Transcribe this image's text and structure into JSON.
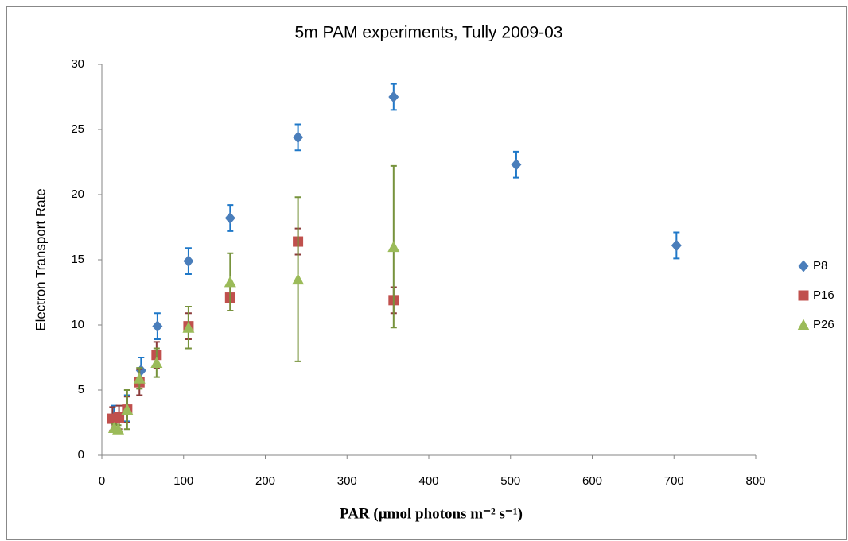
{
  "chart_data": {
    "type": "scatter",
    "title": "5m PAM experiments, Tully 2009-03",
    "x_label": "PAR (µmol photons m⁻² s⁻¹)",
    "y_label": "Electron Transport Rate",
    "xlim": [
      0,
      800
    ],
    "xticks": [
      0,
      100,
      200,
      300,
      400,
      500,
      600,
      700,
      800
    ],
    "ylim": [
      0,
      30
    ],
    "yticks": [
      0,
      5,
      10,
      15,
      20,
      25,
      30
    ],
    "grid": false,
    "legend": "right",
    "series": [
      {
        "name": "P8",
        "color": "#4a7ebb",
        "error_color": "#1f78c8",
        "marker": "diamond",
        "x": [
          15,
          31,
          48,
          68,
          106,
          157,
          240,
          357,
          507,
          703
        ],
        "values": [
          2.9,
          3.6,
          6.5,
          9.9,
          14.9,
          18.2,
          24.4,
          27.5,
          22.3,
          16.1
        ],
        "errors": [
          0.9,
          1,
          1,
          1,
          1,
          1,
          1,
          1,
          1,
          1
        ]
      },
      {
        "name": "P16",
        "color": "#c0504d",
        "error_color": "#8b3a3a",
        "marker": "square",
        "x": [
          13,
          21,
          31,
          46,
          67,
          106,
          157,
          240,
          357
        ],
        "values": [
          2.8,
          2.9,
          3.5,
          5.6,
          7.7,
          9.9,
          12.1,
          16.4,
          11.9
        ],
        "errors": [
          0.9,
          0.9,
          1,
          1,
          1,
          1,
          1,
          1,
          1
        ]
      },
      {
        "name": "P26",
        "color": "#9bbb59",
        "error_color": "#77933c",
        "marker": "triangle",
        "x": [
          15,
          20,
          31,
          46,
          67,
          106,
          157,
          240,
          357
        ],
        "values": [
          2.1,
          2.0,
          3.5,
          5.9,
          7.1,
          9.8,
          13.3,
          13.5,
          16.0
        ],
        "errors": [
          0.3,
          0.3,
          1.5,
          0.8,
          1.1,
          1.6,
          2.2,
          6.3,
          6.2
        ]
      }
    ]
  }
}
